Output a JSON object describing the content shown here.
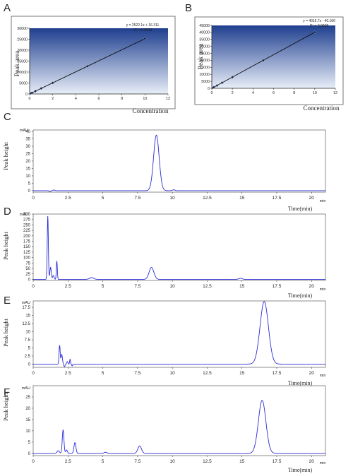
{
  "panels": [
    {
      "id": "A",
      "letter": "A"
    },
    {
      "id": "B",
      "letter": "B"
    },
    {
      "id": "C",
      "letter": "C"
    },
    {
      "id": "D",
      "letter": "D"
    },
    {
      "id": "E",
      "letter": "E"
    },
    {
      "id": "F",
      "letter": "F"
    }
  ],
  "colors": {
    "trace": "#2b2bd6",
    "fit_line": "#0a0a0a",
    "plot_bg_top": "#1f3f8f",
    "plot_bg_bottom": "#e8eef8"
  },
  "chart_data": [
    {
      "id": "A",
      "type": "scatter",
      "xlabel": "Concentration",
      "ylabel": "Peak area",
      "xlim": [
        0,
        12
      ],
      "ylim": [
        0,
        30000
      ],
      "x_ticks": [
        "0",
        "2",
        "4",
        "6",
        "8",
        "10",
        "12"
      ],
      "y_ticks": [
        "0",
        "5000",
        "10000",
        "15000",
        "20000",
        "25000",
        "30000"
      ],
      "equation": "y = 2522.1x + 16.311",
      "r_squared": "R² = 0.9999",
      "slope": 2522.1,
      "intercept": 16.311,
      "points": [
        {
          "x": 0.1,
          "y": 268
        },
        {
          "x": 0.2,
          "y": 521
        },
        {
          "x": 0.5,
          "y": 1277
        },
        {
          "x": 1,
          "y": 2538
        },
        {
          "x": 2,
          "y": 5060
        },
        {
          "x": 5,
          "y": 12627
        },
        {
          "x": 10,
          "y": 25237
        }
      ]
    },
    {
      "id": "B",
      "type": "scatter",
      "xlabel": "Concentration",
      "ylabel": "Peak area",
      "xlim": [
        0,
        12
      ],
      "ylim": [
        0,
        45000
      ],
      "x_ticks": [
        "0",
        "2",
        "4",
        "6",
        "8",
        "10",
        "12"
      ],
      "y_ticks": [
        "0",
        "5000",
        "10000",
        "15000",
        "20000",
        "25000",
        "30000",
        "35000",
        "40000",
        "45000"
      ],
      "equation": "y = 4016.7x - 40.166",
      "r_squared": "R² = 0.9998",
      "slope": 4016.7,
      "intercept": -40.166,
      "points": [
        {
          "x": 0.1,
          "y": 362
        },
        {
          "x": 0.2,
          "y": 763
        },
        {
          "x": 0.5,
          "y": 1968
        },
        {
          "x": 1,
          "y": 3977
        },
        {
          "x": 2,
          "y": 7993
        },
        {
          "x": 5,
          "y": 20043
        },
        {
          "x": 10,
          "y": 40127
        }
      ]
    },
    {
      "id": "C",
      "type": "line",
      "unit": "mAU",
      "ylabel": "Peak height",
      "xlabel": "Time(min)",
      "x_unit": "min",
      "xlim": [
        0,
        21
      ],
      "ylim": [
        -1,
        41
      ],
      "x_ticks": [
        "0",
        "2.5",
        "5",
        "7.5",
        "10",
        "12.5",
        "15",
        "17.5",
        "20"
      ],
      "y_ticks": [
        "0",
        "5",
        "10",
        "15",
        "20",
        "25",
        "30",
        "35",
        "40"
      ],
      "peaks": [
        {
          "t": 1.2,
          "h": -0.7,
          "w": 0.05
        },
        {
          "t": 1.5,
          "h": 0.5,
          "w": 0.05
        },
        {
          "t": 8.85,
          "h": 37.5,
          "w": 0.2
        },
        {
          "t": 10.1,
          "h": 0.6,
          "w": 0.08
        }
      ]
    },
    {
      "id": "D",
      "type": "line",
      "unit": "mAU",
      "ylabel": "Peak height",
      "xlabel": "Time(min)",
      "x_unit": "min",
      "xlim": [
        0,
        21
      ],
      "ylim": [
        -5,
        300
      ],
      "x_ticks": [
        "0",
        "2.5",
        "5",
        "7.5",
        "10",
        "12.5",
        "15",
        "17.5",
        "20"
      ],
      "y_ticks": [
        "0",
        "25",
        "50",
        "75",
        "100",
        "125",
        "150",
        "175",
        "200",
        "225",
        "250",
        "275",
        "300"
      ],
      "peaks": [
        {
          "t": 1.05,
          "h": 290,
          "w": 0.04
        },
        {
          "t": 1.25,
          "h": 55,
          "w": 0.05
        },
        {
          "t": 1.45,
          "h": 18,
          "w": 0.05
        },
        {
          "t": 1.7,
          "h": 85,
          "w": 0.035
        },
        {
          "t": 4.2,
          "h": 8,
          "w": 0.15
        },
        {
          "t": 8.5,
          "h": 55,
          "w": 0.17
        },
        {
          "t": 14.9,
          "h": 5,
          "w": 0.12
        }
      ]
    },
    {
      "id": "E",
      "type": "line",
      "unit": "mAU",
      "ylabel": "Peak height",
      "xlabel": "Time(min)",
      "x_unit": "min",
      "xlim": [
        0,
        21
      ],
      "ylim": [
        -1,
        19.5
      ],
      "x_ticks": [
        "0",
        "2.5",
        "5",
        "7.5",
        "10",
        "12.5",
        "15",
        "17.5",
        "20"
      ],
      "y_ticks": [
        "0",
        "2.5",
        "5",
        "7.5",
        "10",
        "12.5",
        "15",
        "17.5"
      ],
      "peaks": [
        {
          "t": 1.9,
          "h": 5.8,
          "w": 0.04
        },
        {
          "t": 2.05,
          "h": 3.0,
          "w": 0.05
        },
        {
          "t": 2.25,
          "h": -0.8,
          "w": 0.04
        },
        {
          "t": 2.45,
          "h": 0.8,
          "w": 0.04
        },
        {
          "t": 2.65,
          "h": 1.5,
          "w": 0.03
        },
        {
          "t": 2.8,
          "h": -0.6,
          "w": 0.03
        },
        {
          "t": 16.6,
          "h": 19.3,
          "w": 0.3
        }
      ]
    },
    {
      "id": "F",
      "type": "line",
      "unit": "mAU",
      "ylabel": "Peak height",
      "xlabel": "Time(min)",
      "x_unit": "min",
      "xlim": [
        0,
        21
      ],
      "ylim": [
        -1,
        30
      ],
      "x_ticks": [
        "0",
        "2.5",
        "5",
        "7.5",
        "10",
        "12.5",
        "15",
        "17.5",
        "20"
      ],
      "y_ticks": [
        "0",
        "5",
        "10",
        "15",
        "20",
        "25"
      ],
      "peaks": [
        {
          "t": 1.8,
          "h": 1.2,
          "w": 0.08
        },
        {
          "t": 2.15,
          "h": 10.4,
          "w": 0.06
        },
        {
          "t": 2.4,
          "h": 1.5,
          "w": 0.06
        },
        {
          "t": 3.0,
          "h": 4.8,
          "w": 0.07
        },
        {
          "t": 5.2,
          "h": 0.5,
          "w": 0.1
        },
        {
          "t": 7.65,
          "h": 3.3,
          "w": 0.13
        },
        {
          "t": 16.45,
          "h": 23.5,
          "w": 0.27
        }
      ]
    }
  ]
}
